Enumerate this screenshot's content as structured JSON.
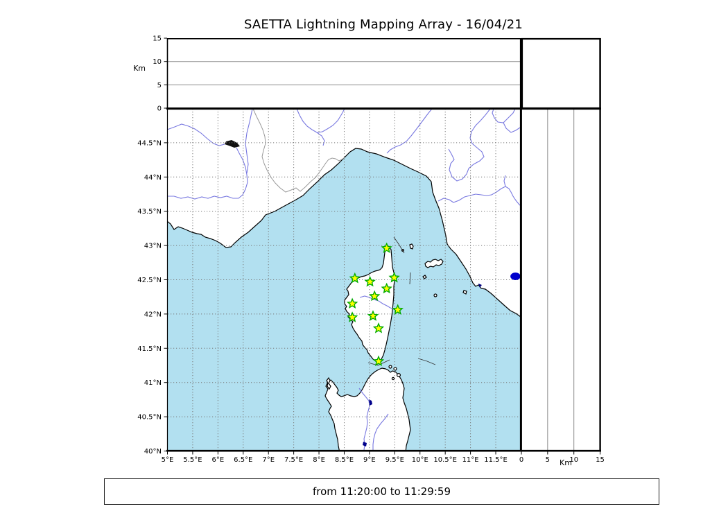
{
  "title": "SAETTA Lightning Mapping Array - 16/04/21",
  "footer": "from 11:20:00 to 11:29:59",
  "axes": {
    "alt_label": "Km",
    "alt_ticks": [
      {
        "label": "0",
        "value": 0
      },
      {
        "label": "5",
        "value": 5
      },
      {
        "label": "10",
        "value": 10
      },
      {
        "label": "15",
        "value": 15
      }
    ],
    "alt_gridlines": [
      5,
      10
    ],
    "alt_range": [
      0,
      15
    ],
    "lon_ticks": [
      {
        "label": "5°E",
        "value": 5
      },
      {
        "label": "5.5°E",
        "value": 5.5
      },
      {
        "label": "6°E",
        "value": 6
      },
      {
        "label": "6.5°E",
        "value": 6.5
      },
      {
        "label": "7°E",
        "value": 7
      },
      {
        "label": "7.5°E",
        "value": 7.5
      },
      {
        "label": "8°E",
        "value": 8
      },
      {
        "label": "8.5°E",
        "value": 8.5
      },
      {
        "label": "9°E",
        "value": 9
      },
      {
        "label": "9.5°E",
        "value": 9.5
      },
      {
        "label": "10°E",
        "value": 10
      },
      {
        "label": "10.5°E",
        "value": 10.5
      },
      {
        "label": "11°E",
        "value": 11
      },
      {
        "label": "11.5°E",
        "value": 11.5
      }
    ],
    "lat_ticks": [
      {
        "label": "44.5°N",
        "value": 44.5
      },
      {
        "label": "44°N",
        "value": 44
      },
      {
        "label": "43.5°N",
        "value": 43.5
      },
      {
        "label": "43°N",
        "value": 43
      },
      {
        "label": "42.5°N",
        "value": 42.5
      },
      {
        "label": "42°N",
        "value": 42
      },
      {
        "label": "41.5°N",
        "value": 41.5
      },
      {
        "label": "41°N",
        "value": 41
      },
      {
        "label": "40.5°N",
        "value": 40.5
      },
      {
        "label": "40°N",
        "value": 40
      }
    ],
    "lon_range": [
      5,
      12
    ],
    "lat_range": [
      40,
      45
    ]
  },
  "stations": [
    {
      "lon": 9.34,
      "lat": 42.96
    },
    {
      "lon": 8.71,
      "lat": 42.52
    },
    {
      "lon": 9.01,
      "lat": 42.47
    },
    {
      "lon": 9.49,
      "lat": 42.53
    },
    {
      "lon": 9.34,
      "lat": 42.37
    },
    {
      "lon": 9.1,
      "lat": 42.26
    },
    {
      "lon": 8.66,
      "lat": 42.15
    },
    {
      "lon": 9.56,
      "lat": 42.06
    },
    {
      "lon": 9.07,
      "lat": 41.97
    },
    {
      "lon": 8.66,
      "lat": 41.95
    },
    {
      "lon": 9.18,
      "lat": 41.79
    },
    {
      "lon": 9.18,
      "lat": 41.31
    }
  ],
  "source_point": {
    "lon": 11.89,
    "lat": 42.55
  },
  "colors": {
    "sea": "#b2e0f0",
    "land": "#ffffff",
    "coast": "#000000",
    "river": "#7878e0",
    "admin_border": "#999999",
    "map_grid": "#777777",
    "panel_grid": "#888888",
    "star_fill": "#ffff00",
    "star_stroke": "#00aa00",
    "point_fill": "#0000cc"
  }
}
